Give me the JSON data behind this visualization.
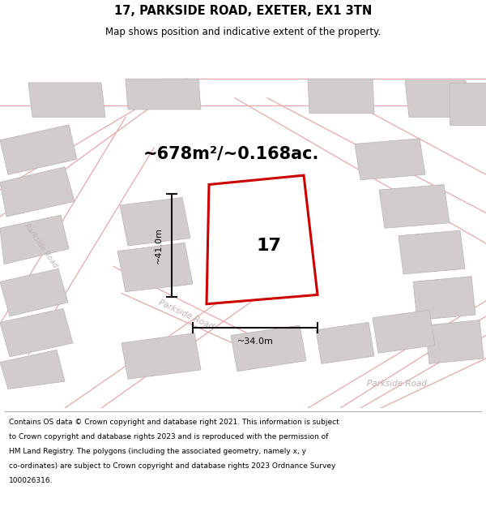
{
  "title": "17, PARKSIDE ROAD, EXETER, EX1 3TN",
  "subtitle": "Map shows position and indicative extent of the property.",
  "area_text": "~678m²/~0.168ac.",
  "number_label": "17",
  "dim_h_label": "~41.0m",
  "dim_w_label": "~34.0m",
  "road_label_diagonal": "Parkside Road",
  "road_label_left": "Parkside Road",
  "road_label_br": "Parkside Road",
  "footer_lines": [
    "Contains OS data © Crown copyright and database right 2021. This information is subject",
    "to Crown copyright and database rights 2023 and is reproduced with the permission of",
    "HM Land Registry. The polygons (including the associated geometry, namely x, y",
    "co-ordinates) are subject to Crown copyright and database rights 2023 Ordnance Survey",
    "100026316."
  ],
  "map_bg": "#eeebeb",
  "plot_color": "#cc0000",
  "building_fill": "#d3cccc",
  "building_edge": "#c0b8b8",
  "road_color": "#e8a8a8",
  "road_text_color": "#c0b0b0",
  "dim_color": "#111111",
  "title_fontsize": 10.5,
  "subtitle_fontsize": 8.5,
  "area_fontsize": 15,
  "number_fontsize": 16,
  "footer_fontsize": 6.5,
  "dim_fontsize": 8,
  "road_label_fontsize": 7.5
}
